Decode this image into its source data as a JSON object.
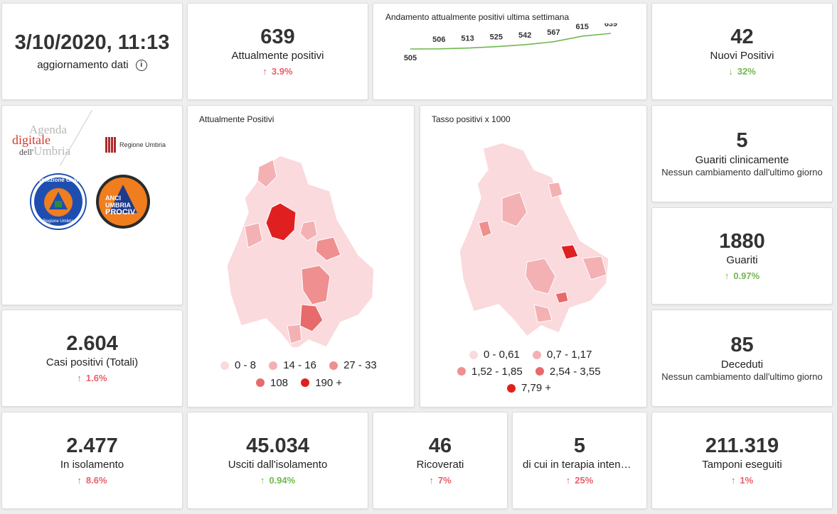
{
  "update": {
    "datetime": "3/10/2020, 11:13",
    "label": "aggiornamento dati",
    "info_icon": "info-icon"
  },
  "positivi": {
    "value": "639",
    "label": "Attualmente positivi",
    "change": "3.9%",
    "direction": "up"
  },
  "trend": {
    "title": "Andamento attualmente positivi ultima settimana",
    "chart_data": {
      "type": "line",
      "values": [
        505,
        506,
        513,
        525,
        542,
        567,
        615,
        639
      ],
      "labels": [
        "505",
        "506",
        "513",
        "525",
        "542",
        "567",
        "615",
        "639"
      ],
      "color": "#6fb94e"
    }
  },
  "nuovi": {
    "value": "42",
    "label": "Nuovi Positivi",
    "change": "32%",
    "direction": "down"
  },
  "logos": {
    "agenda_line1": "Agenda",
    "agenda_line2": "digitale",
    "agenda_line3_prefix": "dell'",
    "agenda_line3": "Umbria",
    "regione": "Regione Umbria",
    "protezione": "Protezione Civile",
    "protezione_sub": "Regione Umbria",
    "anci_line1": "ANCI",
    "anci_line2": "UMBRIA",
    "anci_line3": "PROCIV"
  },
  "map1": {
    "title": "Attualmente Positivi",
    "legend": [
      {
        "label": "0 - 8",
        "color": "#fadadd"
      },
      {
        "label": "14 - 16",
        "color": "#f4b1b3"
      },
      {
        "label": "27 - 33",
        "color": "#ef8f8f"
      },
      {
        "label": "108",
        "color": "#e86a6a"
      },
      {
        "label": "190 +",
        "color": "#e02020"
      }
    ]
  },
  "map2": {
    "title": "Tasso positivi x 1000",
    "legend": [
      {
        "label": "0 - 0,61",
        "color": "#fadadd"
      },
      {
        "label": "0,7 - 1,17",
        "color": "#f4b1b3"
      },
      {
        "label": "1,52 - 1,85",
        "color": "#ef8f8f"
      },
      {
        "label": "2,54 - 3,55",
        "color": "#e86a6a"
      },
      {
        "label": "7,79 +",
        "color": "#e02020"
      }
    ]
  },
  "guariti_clin": {
    "value": "5",
    "label": "Guariti clinicamente",
    "note": "Nessun cambiamento dall'ultimo giorno"
  },
  "guariti": {
    "value": "1880",
    "label": "Guariti",
    "change": "0.97%",
    "direction": "up-green"
  },
  "casi": {
    "value": "2.604",
    "label": "Casi positivi (Totali)",
    "change": "1.6%",
    "direction": "up"
  },
  "deceduti": {
    "value": "85",
    "label": "Deceduti",
    "note": "Nessun cambiamento dall'ultimo giorno"
  },
  "isolamento": {
    "value": "2.477",
    "label": "In isolamento",
    "change": "8.6%",
    "direction": "up"
  },
  "usciti": {
    "value": "45.034",
    "label": "Usciti dall'isolamento",
    "change": "0.94%",
    "direction": "up-green"
  },
  "ricoverati": {
    "value": "46",
    "label": "Ricoverati",
    "change": "7%",
    "direction": "up"
  },
  "terapia": {
    "value": "5",
    "label": "di cui in terapia intensiva",
    "change": "25%",
    "direction": "up"
  },
  "tamponi": {
    "value": "211.319",
    "label": "Tamponi eseguiti",
    "change": "1%",
    "direction": "up"
  }
}
